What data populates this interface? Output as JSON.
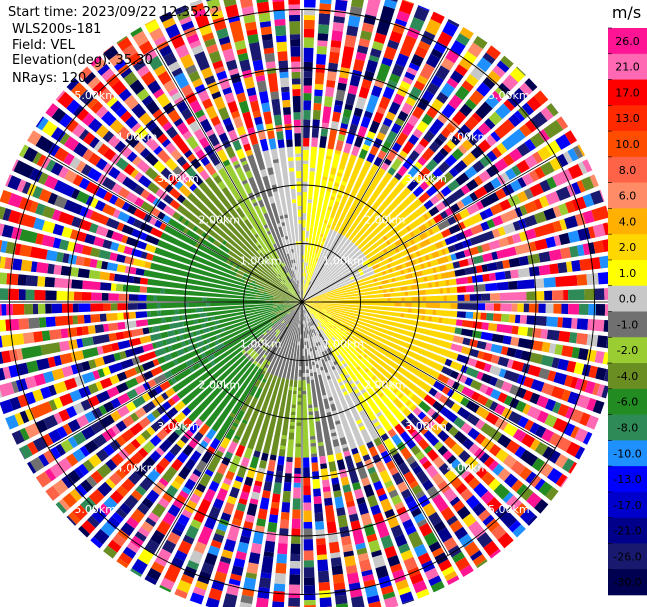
{
  "info": {
    "start_time": "Start time: 2023/09/22 12:35:22",
    "instrument": "WLS200s-181",
    "field": "Field: VEL",
    "elevation": "Elevation(deg): 35.30",
    "nrays": "NRays: 120"
  },
  "chart_data": {
    "type": "heatmap",
    "plot_kind": "ppi-polar",
    "field": "VEL",
    "units": "m/s",
    "nrays": 120,
    "range_rings_km": [
      1,
      2,
      3,
      4,
      5
    ],
    "ring_labels": [
      "1.00km",
      "2.00km",
      "3.00km",
      "4.00km",
      "5.00km"
    ],
    "max_range_km": 5.45,
    "spokes_deg": [
      0,
      30,
      60,
      90,
      120,
      150,
      180,
      210,
      240,
      270,
      300,
      330
    ],
    "clean_data_range_km": 2.65,
    "velocity_pattern": {
      "approaching_azimuth_deg": 255,
      "receding_azimuth_deg": 75,
      "approaching_peak_ms": -6,
      "receding_peak_ms": 4
    },
    "colorbar": {
      "label": "m/s",
      "ticks": [
        "26.0",
        "21.0",
        "17.0",
        "13.0",
        "10.0",
        "8.0",
        "6.0",
        "4.0",
        "2.0",
        "1.0",
        "0.0",
        "-1.0",
        "-2.0",
        "-4.0",
        "-6.0",
        "-8.0",
        "-10.0",
        "-13.0",
        "-17.0",
        "-21.0",
        "-26.0",
        "-30.0"
      ],
      "bounds": [
        30,
        26,
        21,
        17,
        13,
        10,
        8,
        6,
        4,
        2,
        1,
        0,
        -1,
        -2,
        -4,
        -6,
        -8,
        -10,
        -13,
        -17,
        -21,
        -26,
        -30
      ],
      "colors": [
        "#ff1493",
        "#ff69b4",
        "#ff0000",
        "#ff2a00",
        "#ff4d00",
        "#ff6347",
        "#ff8c66",
        "#ffb000",
        "#ffd700",
        "#ffff00",
        "#c8c8c8",
        "#707070",
        "#9acd32",
        "#6b8e23",
        "#228b22",
        "#2e8b57",
        "#1e90ff",
        "#0000ff",
        "#0000cd",
        "#00008b",
        "#191970",
        "#000050"
      ]
    }
  }
}
